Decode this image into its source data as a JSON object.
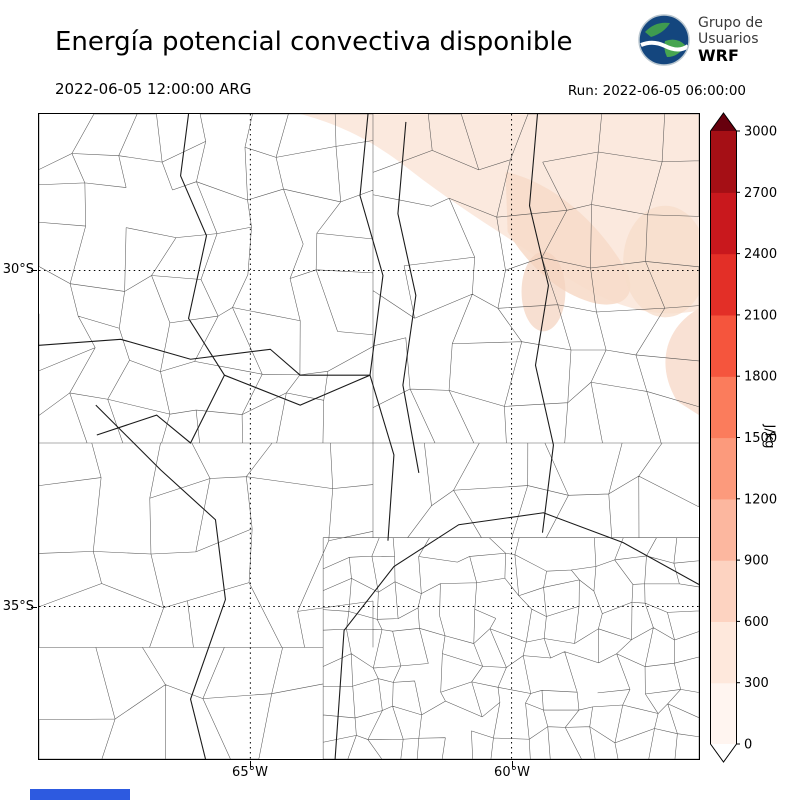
{
  "header": {
    "title": "Energía potencial convectiva disponible",
    "valid_time": "2022-06-05 12:00:00 ARG",
    "run_time": "Run: 2022-06-05 06:00:00",
    "logo": {
      "line1": "Grupo de",
      "line2": "Usuarios",
      "line3": "WRF"
    }
  },
  "map": {
    "lat_ticks": [
      {
        "label": "30°S"
      },
      {
        "label": "35°S"
      }
    ],
    "lon_ticks": [
      {
        "label": "65°W"
      },
      {
        "label": "60°W"
      }
    ]
  },
  "colorbar": {
    "unit": "J/kg",
    "ticks_bottom_to_top": [
      "0",
      "300",
      "600",
      "900",
      "1200",
      "1500",
      "1800",
      "2100",
      "2400",
      "2700",
      "3000"
    ],
    "segment_colors_bottom_to_top": [
      "#fff5f0",
      "#fee8dc",
      "#fdd3c1",
      "#fcb79f",
      "#fc9a7c",
      "#fb7c5c",
      "#f5553d",
      "#e32f27",
      "#c9181d",
      "#a50f15"
    ],
    "under_color": "#ffffff",
    "over_color": "#67000d"
  },
  "chart_data": {
    "type": "heatmap",
    "title": "Energía potencial convectiva disponible",
    "unit": "J/kg",
    "colorbar_ticks": [
      0,
      300,
      600,
      900,
      1200,
      1500,
      1800,
      2100,
      2400,
      2700,
      3000
    ],
    "colorbar_range": [
      0,
      3000
    ],
    "gridlines": {
      "lat": [
        "30°S",
        "35°S"
      ],
      "lon": [
        "65°W",
        "60°W"
      ]
    },
    "field_summary": "CAPE near 0 J/kg over most of the mapped central-Argentina domain; pale shading of roughly 0-600 J/kg over the north-eastern sector"
  }
}
